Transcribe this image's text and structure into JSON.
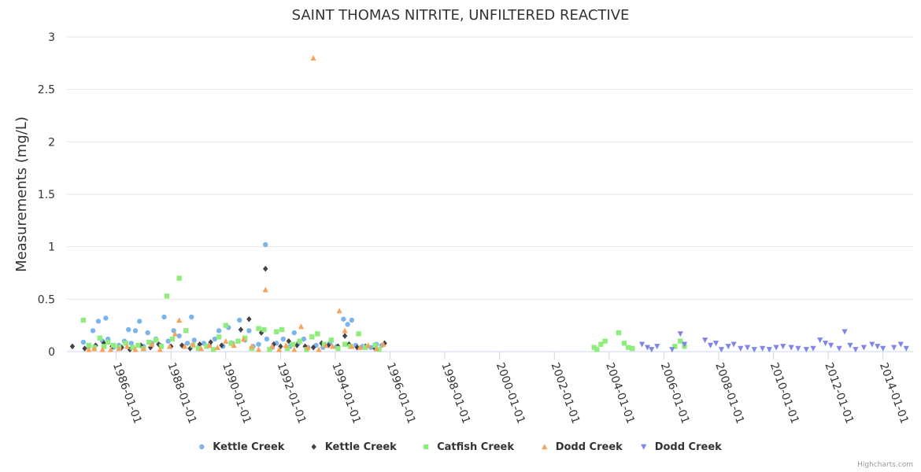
{
  "chart_data": {
    "type": "scatter",
    "title": "SAINT THOMAS NITRITE, UNFILTERED REACTIVE",
    "ylabel": "Measurements (mg/L)",
    "xlabel": "",
    "ylim": [
      0,
      3
    ],
    "yticks": [
      0,
      0.5,
      1,
      1.5,
      2,
      2.5,
      3
    ],
    "ytick_labels": [
      "0",
      "0.5",
      "1",
      "1.5",
      "2",
      "2.5",
      "3"
    ],
    "xlim": [
      1984.2,
      2015.1
    ],
    "xticks": [
      1986,
      1988,
      1990,
      1992,
      1994,
      1996,
      1998,
      2000,
      2002,
      2004,
      2006,
      2008,
      2010,
      2012,
      2014
    ],
    "xtick_labels": [
      "1986-01-01",
      "1988-01-01",
      "1990-01-01",
      "1992-01-01",
      "1994-01-01",
      "1996-01-01",
      "1998-01-01",
      "2000-01-01",
      "2002-01-01",
      "2004-01-01",
      "2006-01-01",
      "2008-01-01",
      "2010-01-01",
      "2012-01-01",
      "2014-01-01"
    ],
    "grid": true,
    "legend_position": "bottom-center",
    "series": [
      {
        "name": "Kettle Creek",
        "marker": "circle",
        "color": "#7cb5ec",
        "points": [
          [
            1984.8,
            0.09
          ],
          [
            1985.0,
            0.05
          ],
          [
            1985.15,
            0.2
          ],
          [
            1985.35,
            0.29
          ],
          [
            1985.5,
            0.1
          ],
          [
            1985.62,
            0.32
          ],
          [
            1985.7,
            0.12
          ],
          [
            1985.9,
            0.04
          ],
          [
            1986.1,
            0.06
          ],
          [
            1986.3,
            0.1
          ],
          [
            1986.45,
            0.21
          ],
          [
            1986.55,
            0.08
          ],
          [
            1986.7,
            0.2
          ],
          [
            1986.85,
            0.29
          ],
          [
            1987.0,
            0.05
          ],
          [
            1987.15,
            0.18
          ],
          [
            1987.3,
            0.08
          ],
          [
            1987.45,
            0.12
          ],
          [
            1987.6,
            0.06
          ],
          [
            1987.75,
            0.33
          ],
          [
            1987.9,
            0.1
          ],
          [
            1988.1,
            0.2
          ],
          [
            1988.3,
            0.15
          ],
          [
            1988.45,
            0.05
          ],
          [
            1988.6,
            0.08
          ],
          [
            1988.75,
            0.33
          ],
          [
            1988.85,
            0.11
          ],
          [
            1989.0,
            0.04
          ],
          [
            1989.2,
            0.08
          ],
          [
            1989.4,
            0.06
          ],
          [
            1989.6,
            0.12
          ],
          [
            1989.75,
            0.2
          ],
          [
            1989.9,
            0.05
          ],
          [
            1990.1,
            0.23
          ],
          [
            1990.25,
            0.08
          ],
          [
            1990.5,
            0.3
          ],
          [
            1990.7,
            0.11
          ],
          [
            1990.85,
            0.2
          ],
          [
            1991.0,
            0.05
          ],
          [
            1991.2,
            0.07
          ],
          [
            1991.45,
            1.02
          ],
          [
            1991.5,
            0.12
          ],
          [
            1991.7,
            0.04
          ],
          [
            1991.85,
            0.08
          ],
          [
            1992.1,
            0.12
          ],
          [
            1992.35,
            0.05
          ],
          [
            1992.5,
            0.18
          ],
          [
            1992.65,
            0.08
          ],
          [
            1992.85,
            0.12
          ],
          [
            1993.0,
            0.04
          ],
          [
            1993.3,
            0.06
          ],
          [
            1993.55,
            0.04
          ],
          [
            1993.8,
            0.08
          ],
          [
            1994.05,
            0.05
          ],
          [
            1994.3,
            0.31
          ],
          [
            1994.45,
            0.26
          ],
          [
            1994.6,
            0.3
          ],
          [
            1994.75,
            0.06
          ],
          [
            1995.0,
            0.05
          ],
          [
            1995.3,
            0.04
          ],
          [
            1995.5,
            0.07
          ],
          [
            1995.7,
            0.06
          ]
        ]
      },
      {
        "name": "Kettle Creek",
        "marker": "diamond",
        "color": "#434348",
        "points": [
          [
            1984.4,
            0.05
          ],
          [
            1984.85,
            0.03
          ],
          [
            1985.25,
            0.06
          ],
          [
            1985.55,
            0.08
          ],
          [
            1985.85,
            0.05
          ],
          [
            1986.2,
            0.04
          ],
          [
            1986.5,
            0.02
          ],
          [
            1986.9,
            0.06
          ],
          [
            1987.25,
            0.04
          ],
          [
            1987.55,
            0.07
          ],
          [
            1988.0,
            0.05
          ],
          [
            1988.4,
            0.06
          ],
          [
            1988.7,
            0.03
          ],
          [
            1989.05,
            0.07
          ],
          [
            1989.45,
            0.09
          ],
          [
            1989.85,
            0.06
          ],
          [
            1990.2,
            0.08
          ],
          [
            1990.55,
            0.21
          ],
          [
            1990.85,
            0.31
          ],
          [
            1991.3,
            0.18
          ],
          [
            1991.45,
            0.79
          ],
          [
            1991.75,
            0.07
          ],
          [
            1992.0,
            0.05
          ],
          [
            1992.3,
            0.1
          ],
          [
            1992.6,
            0.06
          ],
          [
            1992.9,
            0.05
          ],
          [
            1993.2,
            0.04
          ],
          [
            1993.5,
            0.08
          ],
          [
            1993.75,
            0.06
          ],
          [
            1994.1,
            0.05
          ],
          [
            1994.35,
            0.15
          ],
          [
            1994.5,
            0.07
          ],
          [
            1994.8,
            0.04
          ],
          [
            1995.1,
            0.05
          ],
          [
            1995.45,
            0.03
          ],
          [
            1995.8,
            0.08
          ]
        ]
      },
      {
        "name": "Catfish Creek",
        "marker": "square",
        "color": "#90ed7d",
        "points": [
          [
            1984.8,
            0.3
          ],
          [
            1985.0,
            0.06
          ],
          [
            1985.2,
            0.04
          ],
          [
            1985.4,
            0.13
          ],
          [
            1985.55,
            0.05
          ],
          [
            1985.7,
            0.09
          ],
          [
            1985.9,
            0.06
          ],
          [
            1986.1,
            0.04
          ],
          [
            1986.35,
            0.08
          ],
          [
            1986.6,
            0.04
          ],
          [
            1986.8,
            0.06
          ],
          [
            1987.0,
            0.03
          ],
          [
            1987.2,
            0.09
          ],
          [
            1987.45,
            0.11
          ],
          [
            1987.65,
            0.05
          ],
          [
            1987.85,
            0.53
          ],
          [
            1988.05,
            0.12
          ],
          [
            1988.3,
            0.7
          ],
          [
            1988.55,
            0.2
          ],
          [
            1988.8,
            0.06
          ],
          [
            1989.0,
            0.03
          ],
          [
            1989.3,
            0.05
          ],
          [
            1989.55,
            0.02
          ],
          [
            1989.75,
            0.14
          ],
          [
            1990.0,
            0.25
          ],
          [
            1990.2,
            0.08
          ],
          [
            1990.45,
            0.1
          ],
          [
            1990.7,
            0.13
          ],
          [
            1990.95,
            0.03
          ],
          [
            1991.2,
            0.22
          ],
          [
            1991.4,
            0.21
          ],
          [
            1991.6,
            0.02
          ],
          [
            1991.85,
            0.19
          ],
          [
            1992.05,
            0.21
          ],
          [
            1992.25,
            0.03
          ],
          [
            1992.45,
            0.07
          ],
          [
            1992.7,
            0.1
          ],
          [
            1992.95,
            0.02
          ],
          [
            1993.15,
            0.14
          ],
          [
            1993.35,
            0.17
          ],
          [
            1993.6,
            0.07
          ],
          [
            1993.85,
            0.11
          ],
          [
            1994.1,
            0.03
          ],
          [
            1994.35,
            0.07
          ],
          [
            1994.55,
            0.05
          ],
          [
            1994.85,
            0.17
          ],
          [
            1995.1,
            0.04
          ],
          [
            1995.45,
            0.06
          ],
          [
            1995.6,
            0.02
          ],
          [
            2003.45,
            0.04
          ],
          [
            2003.55,
            0.02
          ],
          [
            2003.7,
            0.07
          ],
          [
            2003.85,
            0.1
          ],
          [
            2004.35,
            0.18
          ],
          [
            2004.55,
            0.08
          ],
          [
            2004.7,
            0.04
          ],
          [
            2004.85,
            0.03
          ],
          [
            2006.4,
            0.05
          ],
          [
            2006.6,
            0.1
          ],
          [
            2006.75,
            0.05
          ]
        ]
      },
      {
        "name": "Dodd Creek",
        "marker": "triangle",
        "color": "#f7a35c",
        "points": [
          [
            1985.0,
            0.02
          ],
          [
            1985.2,
            0.03
          ],
          [
            1985.5,
            0.02
          ],
          [
            1985.8,
            0.02
          ],
          [
            1986.1,
            0.03
          ],
          [
            1986.4,
            0.05
          ],
          [
            1986.7,
            0.02
          ],
          [
            1987.0,
            0.03
          ],
          [
            1987.3,
            0.07
          ],
          [
            1987.6,
            0.02
          ],
          [
            1987.95,
            0.05
          ],
          [
            1988.15,
            0.17
          ],
          [
            1988.3,
            0.3
          ],
          [
            1988.5,
            0.05
          ],
          [
            1988.8,
            0.07
          ],
          [
            1989.1,
            0.03
          ],
          [
            1989.4,
            0.06
          ],
          [
            1989.7,
            0.04
          ],
          [
            1990.0,
            0.1
          ],
          [
            1990.3,
            0.06
          ],
          [
            1990.65,
            0.12
          ],
          [
            1990.95,
            0.05
          ],
          [
            1991.2,
            0.02
          ],
          [
            1991.45,
            0.59
          ],
          [
            1991.7,
            0.05
          ],
          [
            1991.95,
            0.02
          ],
          [
            1992.2,
            0.06
          ],
          [
            1992.5,
            0.02
          ],
          [
            1992.75,
            0.24
          ],
          [
            1993.0,
            0.04
          ],
          [
            1993.2,
            2.8
          ],
          [
            1993.4,
            0.02
          ],
          [
            1993.65,
            0.06
          ],
          [
            1993.9,
            0.05
          ],
          [
            1994.15,
            0.39
          ],
          [
            1994.35,
            0.2
          ],
          [
            1994.6,
            0.05
          ],
          [
            1994.9,
            0.04
          ],
          [
            1995.2,
            0.06
          ],
          [
            1995.5,
            0.03
          ],
          [
            1995.75,
            0.07
          ]
        ]
      },
      {
        "name": "Dodd Creek",
        "marker": "triangle-down",
        "color": "#8085e9",
        "points": [
          [
            2005.2,
            0.07
          ],
          [
            2005.4,
            0.04
          ],
          [
            2005.55,
            0.02
          ],
          [
            2005.75,
            0.05
          ],
          [
            2006.3,
            0.02
          ],
          [
            2006.6,
            0.17
          ],
          [
            2006.75,
            0.07
          ],
          [
            2007.5,
            0.11
          ],
          [
            2007.7,
            0.06
          ],
          [
            2007.9,
            0.08
          ],
          [
            2008.1,
            0.02
          ],
          [
            2008.35,
            0.05
          ],
          [
            2008.55,
            0.07
          ],
          [
            2008.8,
            0.03
          ],
          [
            2009.05,
            0.04
          ],
          [
            2009.3,
            0.02
          ],
          [
            2009.6,
            0.03
          ],
          [
            2009.85,
            0.02
          ],
          [
            2010.1,
            0.04
          ],
          [
            2010.35,
            0.05
          ],
          [
            2010.65,
            0.04
          ],
          [
            2010.9,
            0.03
          ],
          [
            2011.2,
            0.02
          ],
          [
            2011.45,
            0.03
          ],
          [
            2011.7,
            0.11
          ],
          [
            2011.9,
            0.08
          ],
          [
            2012.1,
            0.06
          ],
          [
            2012.4,
            0.03
          ],
          [
            2012.6,
            0.19
          ],
          [
            2012.8,
            0.06
          ],
          [
            2013.0,
            0.02
          ],
          [
            2013.3,
            0.04
          ],
          [
            2013.6,
            0.07
          ],
          [
            2013.8,
            0.05
          ],
          [
            2014.0,
            0.03
          ],
          [
            2014.4,
            0.04
          ],
          [
            2014.65,
            0.07
          ],
          [
            2014.85,
            0.03
          ]
        ]
      }
    ]
  },
  "credits": "Highcharts.com"
}
